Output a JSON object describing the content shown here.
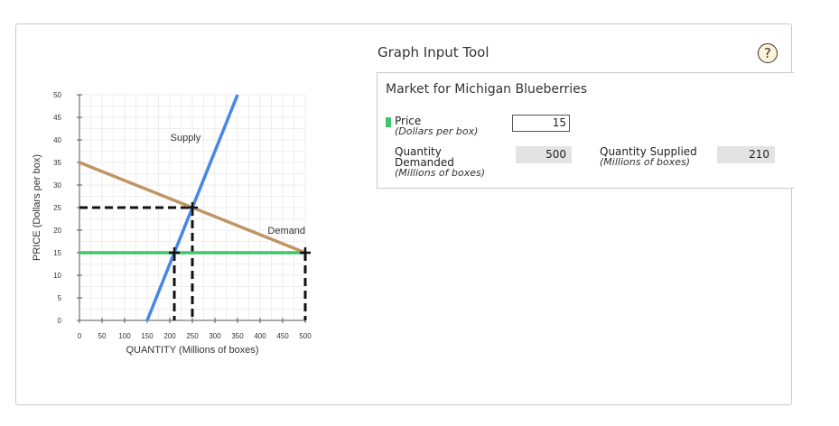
{
  "tool": {
    "title": "Graph Input Tool",
    "help_symbol": "?"
  },
  "panel": {
    "title": "Market for Michigan Blueberries",
    "price_label": "Price",
    "price_unit": "(Dollars per box)",
    "price_value": "15",
    "qd_label_1": "Quantity",
    "qd_label_2": "Demanded",
    "qd_unit": "(Millions of boxes)",
    "qd_value": "500",
    "qs_label": "Quantity Supplied",
    "qs_unit": "(Millions of boxes)",
    "qs_value": "210"
  },
  "colors": {
    "supply": "#4a86e8",
    "demand": "#c09563",
    "price_line": "#3fc66b",
    "price_swatch": "#3fc66b"
  },
  "chart_data": {
    "type": "line",
    "xlabel": "QUANTITY (Millions of boxes)",
    "ylabel": "PRICE (Dollars per box)",
    "xlim": [
      0,
      500
    ],
    "ylim": [
      0,
      50
    ],
    "xticks": [
      0,
      50,
      100,
      150,
      200,
      250,
      300,
      350,
      400,
      450,
      500
    ],
    "yticks": [
      0,
      5,
      10,
      15,
      20,
      25,
      30,
      35,
      40,
      45,
      50
    ],
    "grid": true,
    "series": [
      {
        "name": "Supply",
        "x": [
          150,
          350
        ],
        "y": [
          0,
          50
        ]
      },
      {
        "name": "Demand",
        "x": [
          0,
          500
        ],
        "y": [
          35,
          15
        ]
      }
    ],
    "price_line": {
      "y": 15,
      "x": [
        0,
        500
      ]
    },
    "equilibrium": {
      "x": 250,
      "y": 25
    },
    "markers": [
      {
        "x": 250,
        "y": 25
      },
      {
        "x": 210,
        "y": 15
      },
      {
        "x": 500,
        "y": 15
      }
    ]
  }
}
